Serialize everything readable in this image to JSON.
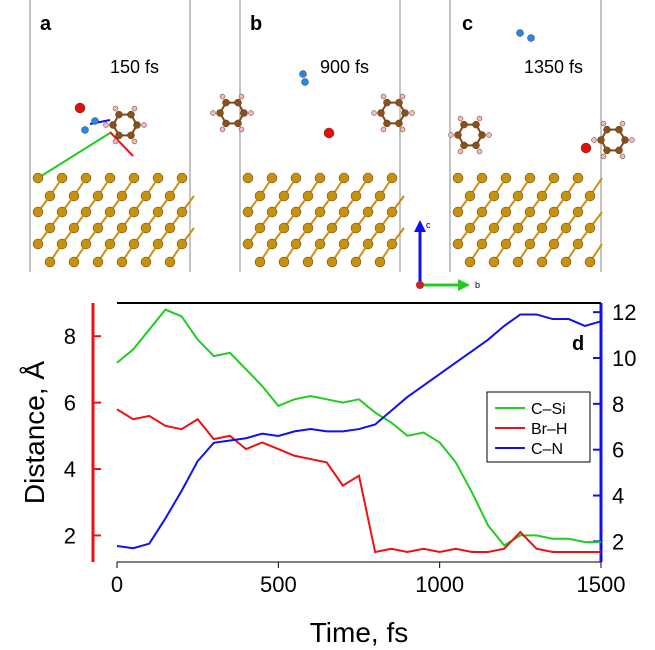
{
  "panels": [
    {
      "letter": "a",
      "time": "150 fs"
    },
    {
      "letter": "b",
      "time": "900 fs"
    },
    {
      "letter": "c",
      "time": "1350 fs"
    }
  ],
  "axes_indicator": {
    "up": "c",
    "right": "b"
  },
  "chart_data": {
    "type": "line",
    "panel_letter": "d",
    "x_label": "Time, fs",
    "y_label": "Distance, Å",
    "x": [
      0,
      50,
      100,
      150,
      200,
      250,
      300,
      350,
      400,
      450,
      500,
      550,
      600,
      650,
      700,
      750,
      800,
      850,
      900,
      950,
      1000,
      1050,
      1100,
      1150,
      1200,
      1250,
      1300,
      1350,
      1400,
      1450,
      1500
    ],
    "xlim": [
      0,
      1500
    ],
    "xticks": [
      0,
      500,
      1000,
      1500
    ],
    "ylim": [
      1.2,
      9.0
    ],
    "yticks": [
      2,
      4,
      6,
      8
    ],
    "y_axis_color": "#ee1111",
    "y2lim": [
      1.1,
      12.4
    ],
    "y2ticks": [
      2,
      4,
      6,
      8,
      10,
      12
    ],
    "y2_axis_color": "#1111ee",
    "legend": "right",
    "series": [
      {
        "name": "C–Si",
        "color": "#22cc22",
        "axis": "y",
        "values": [
          7.2,
          7.6,
          8.2,
          8.8,
          8.6,
          7.9,
          7.4,
          7.5,
          7.0,
          6.5,
          5.9,
          6.1,
          6.2,
          6.1,
          6.0,
          6.1,
          5.7,
          5.4,
          5.0,
          5.1,
          4.8,
          4.2,
          3.3,
          2.3,
          1.7,
          2.0,
          2.0,
          1.9,
          1.9,
          1.8,
          1.8
        ]
      },
      {
        "name": "Br–H",
        "color": "#ee1111",
        "axis": "y",
        "values": [
          5.8,
          5.5,
          5.6,
          5.3,
          5.2,
          5.5,
          4.9,
          5.0,
          4.6,
          4.8,
          4.6,
          4.4,
          4.3,
          4.2,
          3.5,
          3.8,
          1.5,
          1.6,
          1.5,
          1.6,
          1.5,
          1.6,
          1.5,
          1.5,
          1.6,
          2.1,
          1.6,
          1.5,
          1.5,
          1.5,
          1.5
        ]
      },
      {
        "name": "C–N",
        "color": "#1111ee",
        "axis": "y2",
        "values": [
          1.8,
          1.7,
          1.9,
          3.0,
          4.2,
          5.5,
          6.3,
          6.4,
          6.5,
          6.7,
          6.6,
          6.8,
          6.9,
          6.8,
          6.8,
          6.9,
          7.1,
          7.7,
          8.3,
          8.8,
          9.3,
          9.8,
          10.3,
          10.8,
          11.4,
          11.9,
          11.9,
          11.7,
          11.7,
          11.4,
          11.6
        ]
      }
    ]
  }
}
